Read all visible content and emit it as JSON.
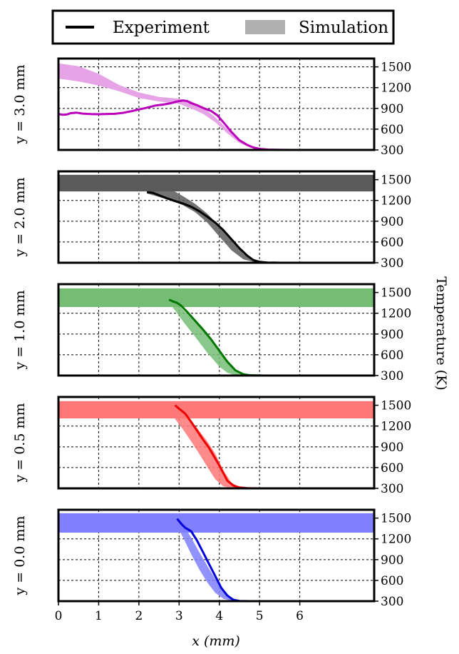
{
  "chart_data": {
    "type": "line",
    "legend": {
      "placement": "top-center",
      "entries": [
        {
          "label": "Experiment",
          "style": "line",
          "color": "#000000"
        },
        {
          "label": "Simulation",
          "style": "band",
          "color": "#b0b0b0"
        }
      ]
    },
    "xlabel": "x (mm)",
    "ylabel": "Temperature (K)",
    "xlim": [
      0,
      7.85
    ],
    "ylim": [
      300,
      1620
    ],
    "xticks": [
      0,
      1,
      2,
      3,
      4,
      5,
      6
    ],
    "yticks": [
      300,
      600,
      900,
      1200,
      1500
    ],
    "grid": true,
    "panels": [
      {
        "label": "y = 3.0 mm",
        "color": "#bb00bb",
        "band_color": "#e6a3e6",
        "experiment": {
          "x": [
            0,
            0.1,
            0.2,
            0.3,
            0.45,
            0.6,
            0.8,
            1.0,
            1.2,
            1.4,
            1.6,
            1.8,
            2.0,
            2.2,
            2.4,
            2.6,
            2.8,
            2.95,
            3.1,
            3.2,
            3.3,
            3.45,
            3.6,
            3.8,
            3.95,
            4.1,
            4.3,
            4.5,
            4.7,
            4.85,
            5.0,
            5.2,
            5.4,
            5.6,
            5.8,
            6.0
          ],
          "y": [
            820,
            808,
            812,
            830,
            838,
            825,
            818,
            816,
            820,
            822,
            835,
            858,
            885,
            910,
            940,
            955,
            975,
            1000,
            1015,
            1005,
            975,
            945,
            905,
            862,
            800,
            700,
            560,
            440,
            370,
            335,
            315,
            305,
            302,
            301,
            300,
            300
          ]
        },
        "simulation": {
          "x": [
            0,
            0.5,
            1.0,
            1.5,
            2.0,
            2.5,
            3.0,
            3.3,
            3.6,
            3.9,
            4.2,
            4.5,
            4.8,
            5.1,
            5.4,
            5.7,
            6.0
          ],
          "upper": [
            1550,
            1510,
            1400,
            1240,
            1130,
            1065,
            1040,
            1005,
            910,
            770,
            600,
            440,
            355,
            318,
            305,
            301,
            300
          ],
          "lower": [
            1330,
            1290,
            1230,
            1150,
            1050,
            1000,
            965,
            900,
            820,
            700,
            540,
            400,
            330,
            308,
            301,
            300,
            300
          ]
        }
      },
      {
        "label": "y = 2.0 mm",
        "color": "#000000",
        "band_color": "#5a5a5a",
        "flat_band": [
          1330,
          1570
        ],
        "experiment": {
          "x": [
            2.2,
            2.35,
            2.5,
            2.7,
            2.9,
            3.1,
            3.3,
            3.5,
            3.7,
            3.9,
            4.1,
            4.3,
            4.5,
            4.7,
            4.85,
            5.0,
            5.2,
            5.5,
            6.0
          ],
          "y": [
            1320,
            1310,
            1275,
            1230,
            1190,
            1155,
            1110,
            1045,
            965,
            880,
            770,
            640,
            510,
            400,
            338,
            312,
            303,
            300,
            300
          ]
        },
        "simulation": {
          "x": [
            2.2,
            2.5,
            2.8,
            3.1,
            3.4,
            3.7,
            4.0,
            4.3,
            4.6,
            4.9,
            5.2
          ],
          "upper": [
            1570,
            1460,
            1360,
            1260,
            1150,
            1010,
            830,
            620,
            430,
            330,
            305
          ],
          "lower": [
            1300,
            1250,
            1200,
            1130,
            1030,
            880,
            680,
            480,
            350,
            306,
            300
          ]
        }
      },
      {
        "label": "y = 1.0 mm",
        "color": "#007700",
        "band_color": "#75bd75",
        "flat_band": [
          1290,
          1560
        ],
        "experiment": {
          "x": [
            2.75,
            2.85,
            2.95,
            3.05,
            3.2,
            3.4,
            3.6,
            3.8,
            4.0,
            4.2,
            4.4,
            4.6,
            4.75,
            4.9,
            5.1,
            5.4,
            5.8,
            6.0
          ],
          "y": [
            1395,
            1370,
            1350,
            1310,
            1220,
            1090,
            960,
            820,
            660,
            500,
            375,
            318,
            305,
            302,
            300,
            300,
            300,
            300
          ]
        },
        "simulation": {
          "x": [
            2.75,
            2.9,
            3.1,
            3.4,
            3.7,
            4.0,
            4.2,
            4.4,
            4.6,
            4.8,
            5.0
          ],
          "upper": [
            1430,
            1380,
            1250,
            1080,
            880,
            650,
            490,
            380,
            320,
            303,
            300
          ],
          "lower": [
            1350,
            1240,
            1080,
            860,
            630,
            430,
            340,
            305,
            300,
            300,
            300
          ]
        }
      },
      {
        "label": "y = 0.5 mm",
        "color": "#ee0000",
        "band_color": "#ff7777",
        "flat_band": [
          1310,
          1560
        ],
        "experiment": {
          "x": [
            2.9,
            3.0,
            3.15,
            3.3,
            3.45,
            3.6,
            3.75,
            3.9,
            4.0,
            4.1,
            4.2,
            4.35,
            4.5,
            4.7,
            5.0,
            5.5,
            6.0
          ],
          "y": [
            1500,
            1450,
            1380,
            1260,
            1130,
            1000,
            880,
            730,
            630,
            520,
            410,
            340,
            312,
            303,
            300,
            300,
            300
          ]
        },
        "simulation": {
          "x": [
            2.9,
            3.1,
            3.3,
            3.5,
            3.7,
            3.9,
            4.1,
            4.3,
            4.5,
            4.7
          ],
          "upper": [
            1500,
            1410,
            1280,
            1130,
            980,
            800,
            560,
            380,
            316,
            302
          ],
          "lower": [
            1300,
            1150,
            980,
            800,
            610,
            430,
            330,
            304,
            300,
            300
          ]
        }
      },
      {
        "label": "y = 0.0 mm",
        "color": "#0000dd",
        "band_color": "#7f7fff",
        "flat_band": [
          1290,
          1570
        ],
        "experiment": {
          "x": [
            2.95,
            3.05,
            3.15,
            3.3,
            3.45,
            3.6,
            3.75,
            3.9,
            4.05,
            4.2,
            4.35,
            4.5,
            4.75,
            5.0,
            5.5,
            6.0
          ],
          "y": [
            1490,
            1420,
            1360,
            1310,
            1170,
            1000,
            830,
            660,
            490,
            380,
            320,
            303,
            300,
            300,
            300,
            300
          ]
        },
        "simulation": {
          "x": [
            2.95,
            3.1,
            3.3,
            3.5,
            3.7,
            3.9,
            4.1,
            4.3,
            4.5,
            4.7
          ],
          "upper": [
            1490,
            1400,
            1220,
            1010,
            810,
            620,
            460,
            350,
            308,
            300
          ],
          "lower": [
            1380,
            1220,
            980,
            760,
            570,
            420,
            335,
            304,
            300,
            300
          ]
        }
      }
    ]
  }
}
